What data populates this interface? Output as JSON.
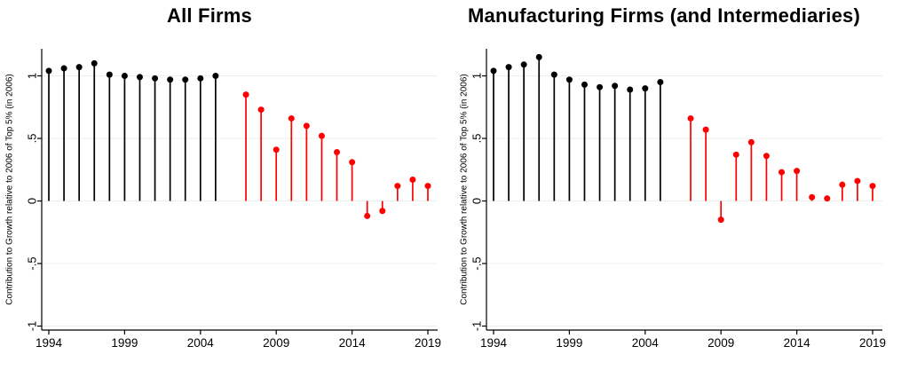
{
  "figure": {
    "background": "#ffffff",
    "colors": {
      "pre_2006_stems": "#000000",
      "post_2006_stems": "#ff0000",
      "grid": "#e8f0ef",
      "axis": "#000000",
      "text": "#000000"
    }
  },
  "chart_data": [
    {
      "type": "lollipop",
      "title": "All Firms",
      "ylabel": "Contribution to Growth relative to 2006 of Top 5% (in 2006)",
      "xlabel": "",
      "x_ticks": [
        1994,
        1999,
        2004,
        2009,
        2014,
        2019
      ],
      "y_ticks": [
        {
          "label": "1",
          "value": 1
        },
        {
          "label": ".5",
          "value": 0.5
        },
        {
          "label": "0",
          "value": 0
        },
        {
          "label": "-.5",
          "value": -0.5
        },
        {
          "label": "-1",
          "value": -1
        }
      ],
      "xlim": [
        1993.5,
        2019.6
      ],
      "ylim": [
        -1.03,
        1.22
      ],
      "grid": true,
      "legend": false,
      "baseline": 0,
      "omitted_reference_year": 2006,
      "series": [
        {
          "name": "pre-2006 (black stems)",
          "color": "#000000",
          "x": [
            1994,
            1995,
            1996,
            1997,
            1998,
            1999,
            2000,
            2001,
            2002,
            2003,
            2004,
            2005
          ],
          "values": [
            1.04,
            1.06,
            1.07,
            1.1,
            1.01,
            1.0,
            0.99,
            0.98,
            0.97,
            0.97,
            0.98,
            1.0
          ]
        },
        {
          "name": "post-2006 (red stems)",
          "color": "#ff0000",
          "x": [
            2007,
            2008,
            2009,
            2010,
            2011,
            2012,
            2013,
            2014,
            2015,
            2016,
            2017,
            2018,
            2019
          ],
          "values": [
            0.85,
            0.73,
            0.41,
            0.66,
            0.6,
            0.52,
            0.39,
            0.31,
            -0.12,
            -0.08,
            0.12,
            0.17,
            0.12
          ]
        }
      ]
    },
    {
      "type": "lollipop",
      "title": "Manufacturing Firms (and Intermediaries)",
      "ylabel": "Contribution to Growth relative to 2006 of Top 5% (in 2006)",
      "xlabel": "",
      "x_ticks": [
        1994,
        1999,
        2004,
        2009,
        2014,
        2019
      ],
      "y_ticks": [
        {
          "label": "1",
          "value": 1
        },
        {
          "label": ".5",
          "value": 0.5
        },
        {
          "label": "0",
          "value": 0
        },
        {
          "label": "-.5",
          "value": -0.5
        },
        {
          "label": "-1",
          "value": -1
        }
      ],
      "xlim": [
        1993.5,
        2019.6
      ],
      "ylim": [
        -1.03,
        1.22
      ],
      "grid": true,
      "legend": false,
      "baseline": 0,
      "omitted_reference_year": 2006,
      "series": [
        {
          "name": "pre-2006 (black stems)",
          "color": "#000000",
          "x": [
            1994,
            1995,
            1996,
            1997,
            1998,
            1999,
            2000,
            2001,
            2002,
            2003,
            2004,
            2005
          ],
          "values": [
            1.04,
            1.07,
            1.09,
            1.15,
            1.01,
            0.97,
            0.93,
            0.91,
            0.92,
            0.89,
            0.9,
            0.95
          ]
        },
        {
          "name": "post-2006 (red stems)",
          "color": "#ff0000",
          "x": [
            2007,
            2008,
            2009,
            2010,
            2011,
            2012,
            2013,
            2014,
            2015,
            2016,
            2017,
            2018,
            2019
          ],
          "values": [
            0.66,
            0.57,
            -0.15,
            0.37,
            0.47,
            0.36,
            0.23,
            0.24,
            0.03,
            0.02,
            0.13,
            0.16,
            0.12
          ]
        }
      ]
    }
  ]
}
